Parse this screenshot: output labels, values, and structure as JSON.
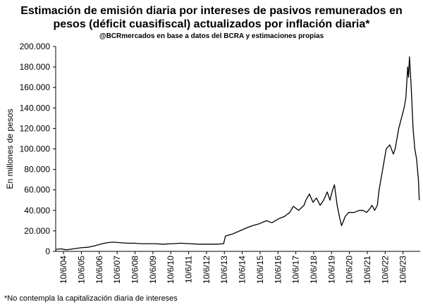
{
  "chart_data": {
    "type": "line",
    "title": "Estimación de emisión diaria por intereses de pasivos remunerados en pesos (déficit cuasifiscal) actualizados por inflación diaria*",
    "title_lines": [
      "Estimación de emisión diaria por intereses de pasivos remunerados en",
      "pesos (déficit cuasifiscal) actualizados por inflación diaria*"
    ],
    "subtitle": "@BCRmercados en base a datos del BCRA y estimaciones propias",
    "footnote": "*No contempla la capitalización diaria de intereses",
    "ylabel": "En millones de pesos",
    "xlabel": "",
    "ylim": [
      0,
      200000
    ],
    "yticks": [
      0,
      20000,
      40000,
      60000,
      80000,
      100000,
      120000,
      140000,
      160000,
      180000,
      200000
    ],
    "ytick_labels": [
      "0",
      "20.000",
      "40.000",
      "60.000",
      "80.000",
      "100.000",
      "120.000",
      "140.000",
      "160.000",
      "180.000",
      "200.000"
    ],
    "xticks": [
      "10/6/04",
      "10/6/05",
      "10/6/06",
      "10/6/07",
      "10/6/08",
      "10/6/09",
      "10/6/10",
      "10/6/11",
      "10/6/12",
      "10/6/13",
      "10/6/14",
      "10/6/15",
      "10/6/16",
      "10/6/17",
      "10/6/18",
      "10/6/19",
      "10/6/20",
      "10/6/21",
      "10/6/22",
      "10/6/23"
    ],
    "x_range": [
      2004.0,
      2024.4
    ],
    "grid": false,
    "legend": false,
    "line_color": "#000000",
    "series": [
      {
        "x": [
          2004.0,
          2004.3,
          2004.6,
          2005.0,
          2005.4,
          2005.8,
          2006.2,
          2006.6,
          2006.9,
          2007.2,
          2007.6,
          2008.0,
          2008.4,
          2008.8,
          2009.2,
          2009.6,
          2010.0,
          2010.5,
          2011.0,
          2011.5,
          2012.0,
          2012.5,
          2013.0,
          2013.4,
          2013.5,
          2013.9,
          2014.3,
          2014.7,
          2015.0,
          2015.4,
          2015.8,
          2016.1,
          2016.5,
          2016.8,
          2017.1,
          2017.3,
          2017.6,
          2017.9,
          2018.0,
          2018.2,
          2018.4,
          2018.6,
          2018.8,
          2019.0,
          2019.2,
          2019.35,
          2019.5,
          2019.6,
          2019.75,
          2019.9,
          2020.0,
          2020.2,
          2020.4,
          2020.7,
          2021.0,
          2021.2,
          2021.4,
          2021.6,
          2021.7,
          2021.85,
          2022.0,
          2022.1,
          2022.3,
          2022.5,
          2022.7,
          2022.9,
          2023.0,
          2023.2,
          2023.35,
          2023.5,
          2023.6,
          2023.7,
          2023.75,
          2023.8,
          2023.9,
          2024.0,
          2024.1,
          2024.2,
          2024.3,
          2024.35
        ],
        "y": [
          2000,
          2500,
          1500,
          2500,
          3500,
          4000,
          5500,
          7500,
          8500,
          9000,
          8500,
          8000,
          8000,
          7500,
          7500,
          7500,
          7000,
          7500,
          8000,
          7500,
          7000,
          7000,
          7000,
          7500,
          15000,
          17000,
          20000,
          23000,
          25000,
          27000,
          30000,
          28000,
          32000,
          34000,
          38000,
          44000,
          40000,
          45000,
          50000,
          56000,
          48000,
          52000,
          45000,
          50000,
          58000,
          50000,
          60000,
          65000,
          45000,
          32000,
          25000,
          34000,
          38000,
          38000,
          40000,
          40000,
          38000,
          42000,
          45000,
          40000,
          45000,
          60000,
          80000,
          100000,
          104000,
          95000,
          100000,
          120000,
          130000,
          140000,
          150000,
          180000,
          170000,
          190000,
          160000,
          120000,
          100000,
          90000,
          70000,
          50000
        ]
      }
    ]
  }
}
